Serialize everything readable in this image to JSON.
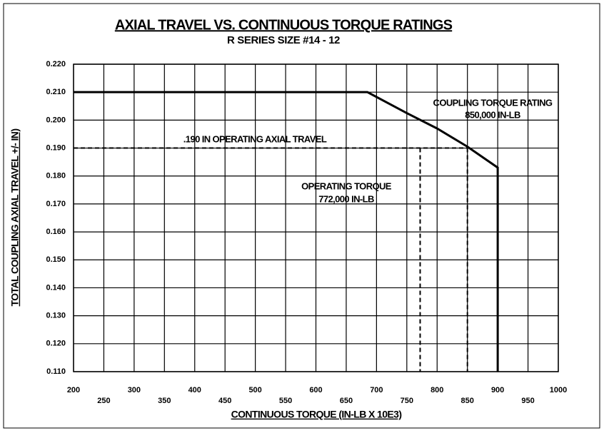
{
  "chart_data": {
    "type": "line",
    "title": "AXIAL TRAVEL VS. CONTINUOUS TORQUE RATINGS",
    "subtitle": "R SERIES SIZE #14 - 12",
    "x_label": "CONTINUOUS TORQUE (IN-LB X 10E3)",
    "y_label": "TOTAL COUPLING AXIAL TRAVEL +/- IN)",
    "annotations": [
      "COUPLING TORQUE RATING",
      "850,000 IN-LB",
      ".190 IN OPERATING AXIAL TRAVEL",
      "OPERATING TORQUE",
      "772,000 IN-LB"
    ],
    "xlim": [
      200,
      1000
    ],
    "xticks": [
      200,
      250,
      300,
      350,
      400,
      450,
      500,
      550,
      600,
      650,
      700,
      750,
      800,
      850,
      900,
      950,
      1000
    ],
    "ylim": [
      0.11,
      0.22
    ],
    "yticks": [
      {
        "value": 0.11,
        "label": "0.110"
      },
      {
        "value": 0.12,
        "label": "0.120"
      },
      {
        "value": 0.13,
        "label": "0.130"
      },
      {
        "value": 0.14,
        "label": "0.140"
      },
      {
        "value": 0.15,
        "label": "0.150"
      },
      {
        "value": 0.16,
        "label": "0.160"
      },
      {
        "value": 0.17,
        "label": "0.170"
      },
      {
        "value": 0.18,
        "label": "0.180"
      },
      {
        "value": 0.19,
        "label": "0.190"
      },
      {
        "value": 0.2,
        "label": "0.200"
      },
      {
        "value": 0.21,
        "label": "0.210"
      },
      {
        "value": 0.22,
        "label": "0.220"
      }
    ],
    "grid": true,
    "series": [
      {
        "color": "#000000",
        "dashed": false,
        "x": [
          200,
          685,
          750,
          800,
          850,
          900,
          900
        ],
        "values": [
          0.21,
          0.21,
          0.2025,
          0.197,
          0.1905,
          0.183,
          0.11
        ]
      },
      {
        "color": "#000000",
        "dashed": true,
        "x": [
          200,
          850
        ],
        "values": [
          0.19,
          0.19
        ]
      },
      {
        "color": "#000000",
        "dashed": true,
        "x": [
          772,
          772
        ],
        "values": [
          0.19,
          0.11
        ]
      },
      {
        "color": "#000000",
        "dashed": true,
        "x": [
          850,
          850
        ],
        "values": [
          0.19,
          0.11
        ]
      }
    ]
  }
}
